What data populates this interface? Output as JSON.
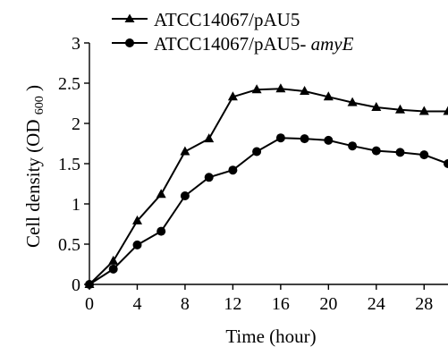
{
  "chart_data": {
    "type": "line",
    "title": "",
    "xlabel": "Time (hour)",
    "ylabel": {
      "main": "Cell density (OD",
      "subscript": "600",
      "close": ")"
    },
    "xlim": [
      0,
      30
    ],
    "ylim": [
      0,
      3
    ],
    "x_ticks": [
      0,
      4,
      8,
      12,
      16,
      20,
      24,
      28
    ],
    "y_ticks": [
      0,
      0.5,
      1,
      1.5,
      2,
      2.5,
      3
    ],
    "x_tick_labels": [
      "0",
      "4",
      "8",
      "12",
      "16",
      "20",
      "24",
      "28"
    ],
    "y_tick_labels": [
      "0",
      "0.5",
      "1",
      "1.5",
      "2",
      "2.5",
      "3"
    ],
    "grid": false,
    "legend_position": "top-left",
    "x": [
      0,
      2,
      4,
      6,
      8,
      10,
      12,
      14,
      16,
      18,
      20,
      22,
      24,
      26,
      28,
      30
    ],
    "series": [
      {
        "name": "ATCC14067/pAU5",
        "legend": {
          "plain": "ATCC14067/pAU5",
          "italic": ""
        },
        "marker": "triangle",
        "color": "#000000",
        "values": [
          0.0,
          0.29,
          0.79,
          1.12,
          1.65,
          1.81,
          2.33,
          2.42,
          2.43,
          2.4,
          2.33,
          2.26,
          2.2,
          2.17,
          2.15,
          2.15
        ]
      },
      {
        "name": "ATCC14067/pAU5-amyE",
        "legend": {
          "plain": "ATCC14067/pAU5-",
          "italic": "amyE"
        },
        "marker": "circle",
        "color": "#000000",
        "values": [
          0.0,
          0.19,
          0.49,
          0.66,
          1.1,
          1.33,
          1.42,
          1.65,
          1.82,
          1.81,
          1.79,
          1.72,
          1.66,
          1.64,
          1.61,
          1.5
        ]
      }
    ]
  }
}
